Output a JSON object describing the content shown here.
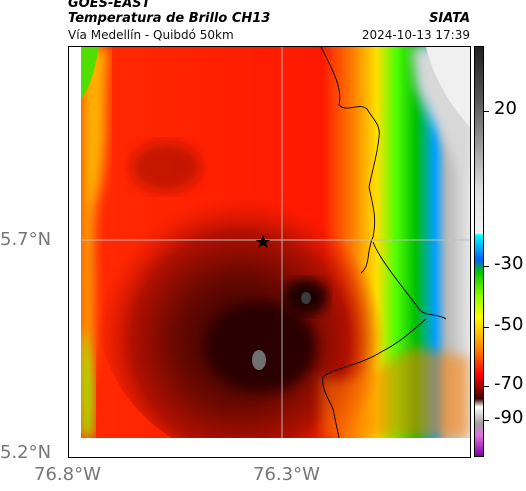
{
  "header": {
    "title_line1": "GOES-EAST",
    "title_line2": "Temperatura de Brillo CH13",
    "subtitle": "Vía Medellín - Quibdó 50km",
    "credit": "SIATA",
    "datetime": "2024-10-13 17:39"
  },
  "map": {
    "lat_labels": [
      "5.7°N",
      "5.2°N"
    ],
    "lon_labels": [
      "76.8°W",
      "76.3°W"
    ],
    "marker_icon": "star-icon"
  },
  "colorbar": {
    "labels": [
      "20",
      "-30",
      "-50",
      "-70",
      "-90"
    ],
    "colors": [
      "#e8e8e8",
      "#b0b0b0",
      "#606060",
      "#1a1a1a",
      "#00ffff",
      "#00a0ff",
      "#00ff00",
      "#ffff00",
      "#ff8000",
      "#ff0000",
      "#300000",
      "#ffffff",
      "#c040c0"
    ]
  }
}
